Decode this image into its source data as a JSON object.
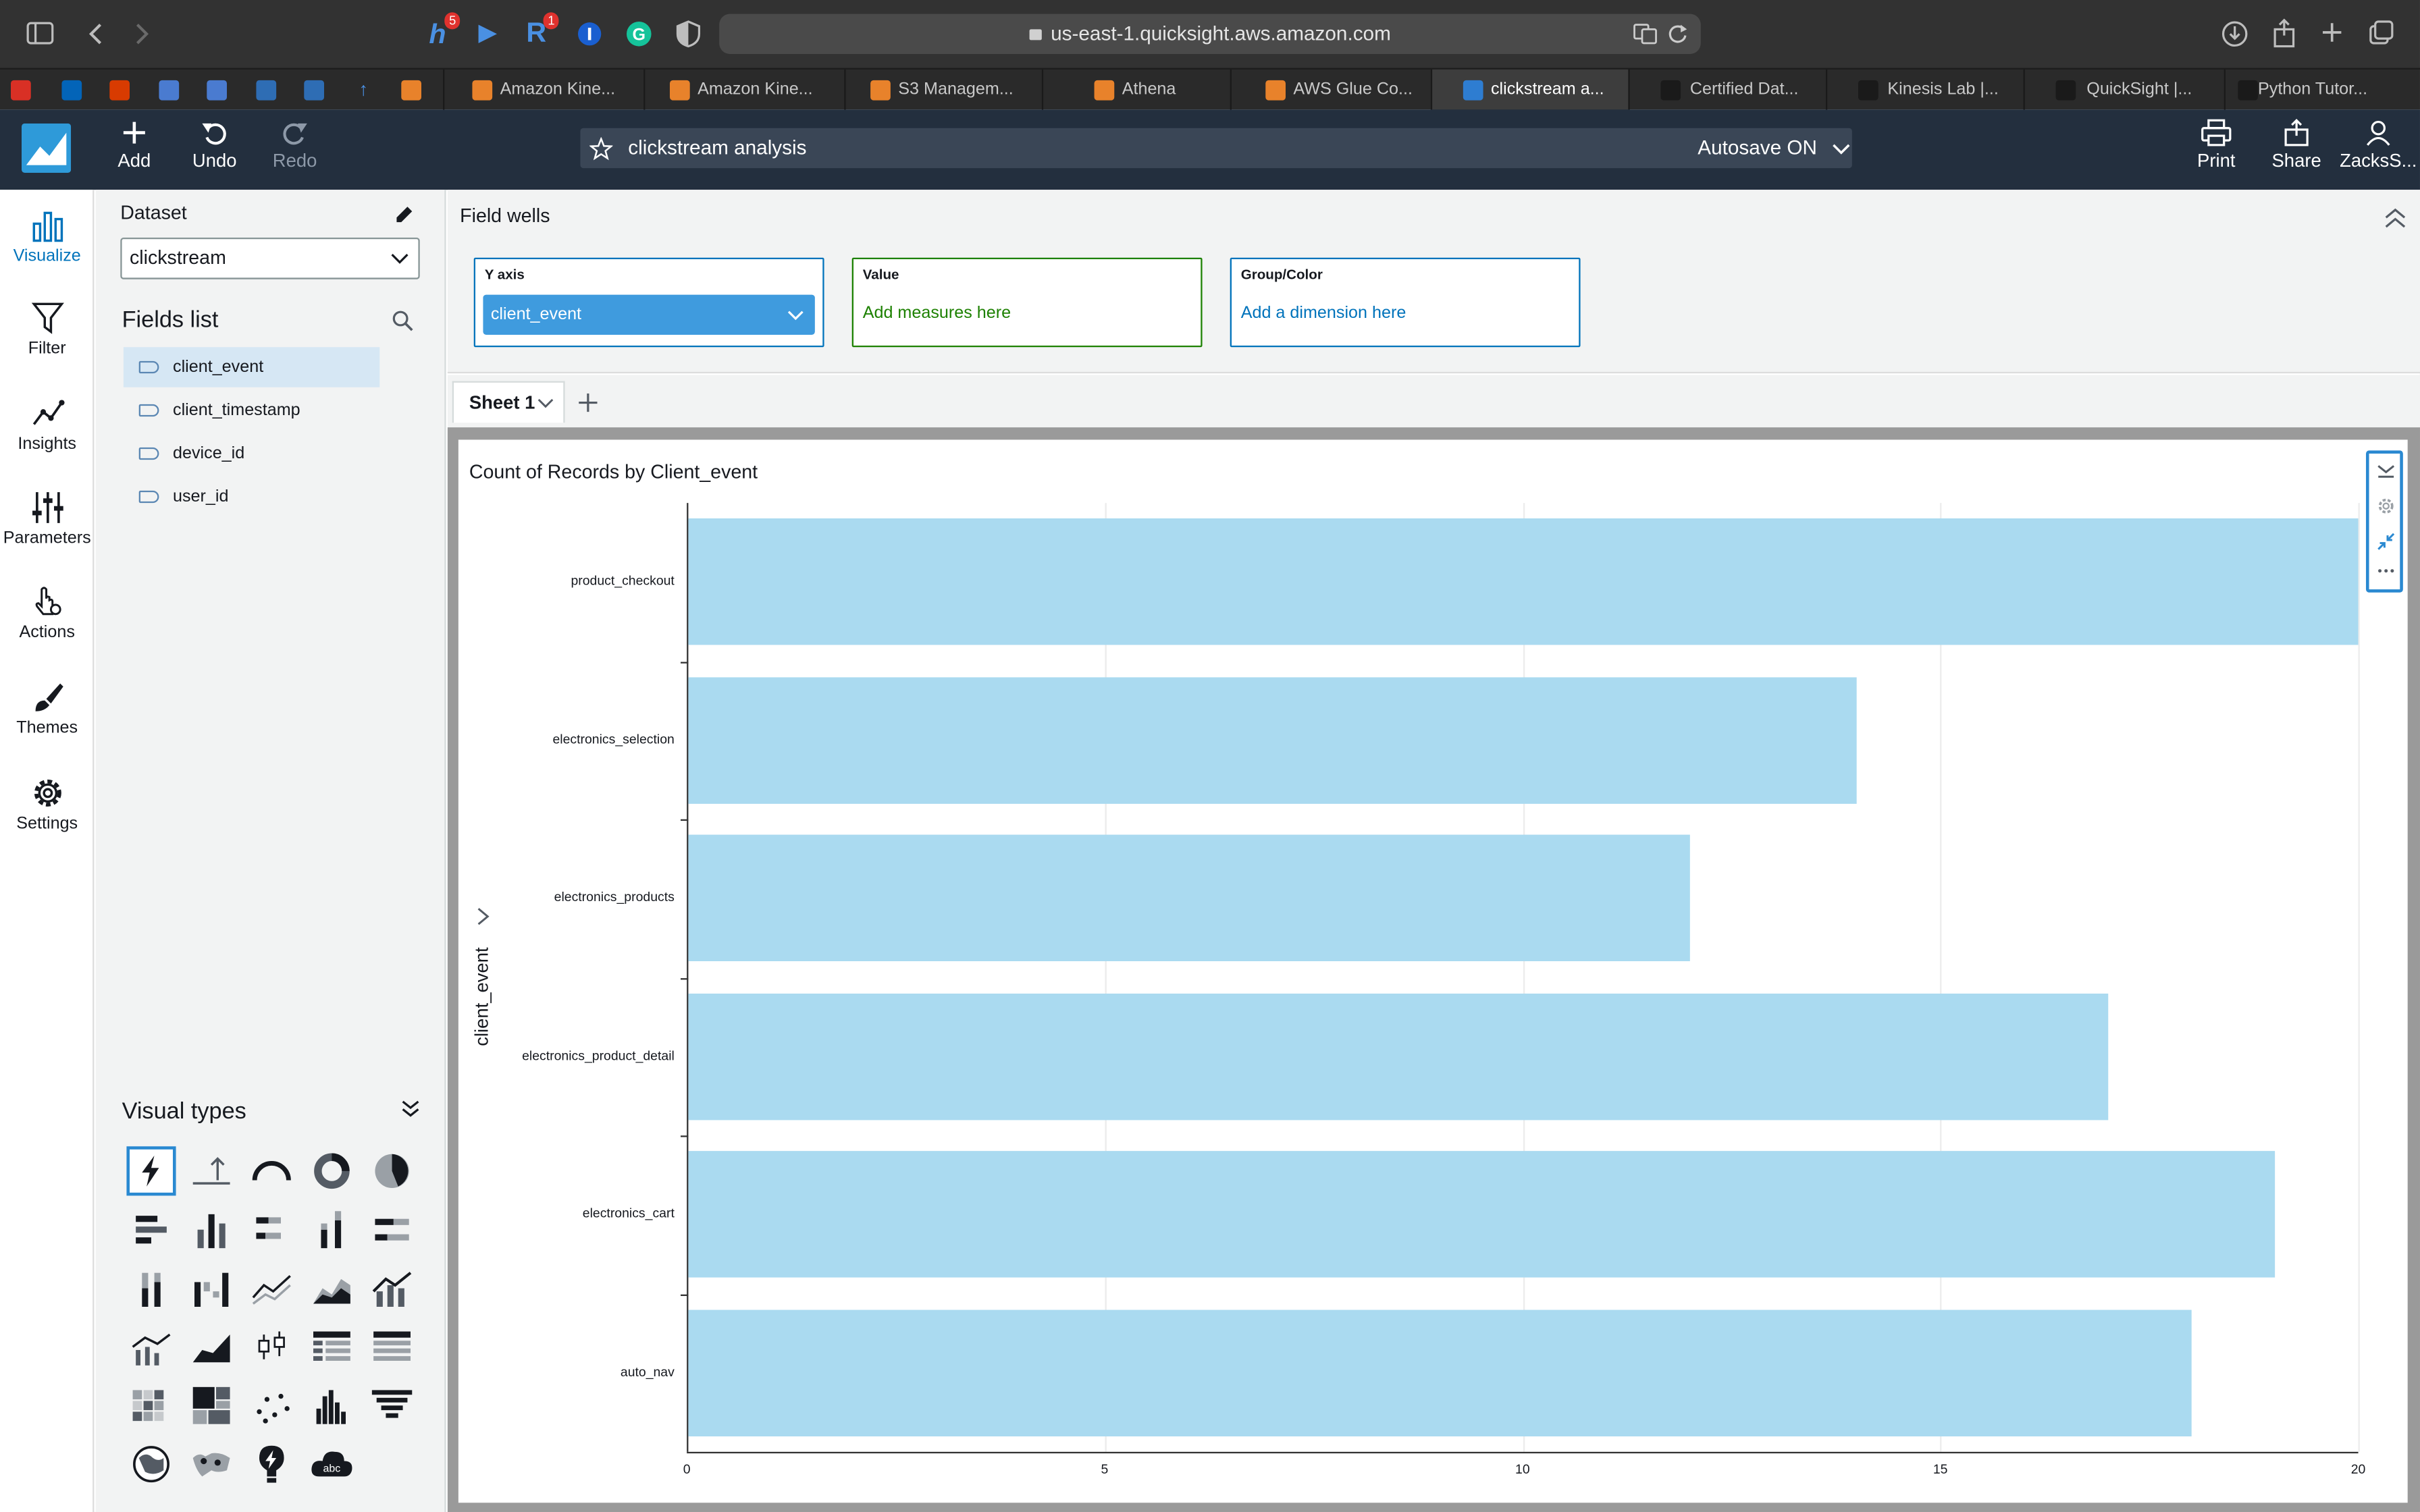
{
  "browser": {
    "url": "us-east-1.quicksight.aws.amazon.com",
    "ext_badges": [
      "5",
      "1"
    ],
    "tabs": [
      "Amazon Kine...",
      "Amazon Kine...",
      "S3 Managem...",
      "Athena",
      "AWS Glue Co...",
      "clickstream a...",
      "Certified Dat...",
      "Kinesis Lab |...",
      "QuickSight |...",
      "Python Tutor..."
    ]
  },
  "toolbar": {
    "add": "Add",
    "undo": "Undo",
    "redo": "Redo",
    "analysis_name": "clickstream analysis",
    "autosave": "Autosave ON",
    "print": "Print",
    "share": "Share",
    "user": "ZacksS..."
  },
  "rail": {
    "items": [
      "Visualize",
      "Filter",
      "Insights",
      "Parameters",
      "Actions",
      "Themes",
      "Settings"
    ]
  },
  "dataset": {
    "label": "Dataset",
    "selected": "clickstream"
  },
  "fields": {
    "title": "Fields list",
    "items": [
      "client_event",
      "client_timestamp",
      "device_id",
      "user_id"
    ]
  },
  "visual_types": {
    "title": "Visual types"
  },
  "field_wells": {
    "title": "Field wells",
    "y_axis": {
      "label": "Y axis",
      "value": "client_event"
    },
    "value": {
      "label": "Value",
      "placeholder": "Add measures here"
    },
    "group": {
      "label": "Group/Color",
      "placeholder": "Add a dimension here"
    }
  },
  "sheet": {
    "name": "Sheet 1"
  },
  "colors": {
    "bar": "#aadaf0",
    "accent": "#0073bb",
    "header": "#232f3e",
    "value_well": "#1d8102"
  },
  "chart_data": {
    "type": "bar",
    "orientation": "horizontal",
    "title": "Count of Records by Client_event",
    "ylabel": "client_event",
    "xlabel": "",
    "categories": [
      "product_checkout",
      "electronics_selection",
      "electronics_products",
      "electronics_product_detail",
      "electronics_cart",
      "auto_nav"
    ],
    "values": [
      20,
      14,
      12,
      17,
      19,
      18
    ],
    "xlim": [
      0,
      20
    ],
    "xticks": [
      "0",
      "5",
      "10",
      "15",
      "20"
    ],
    "grid": true
  }
}
